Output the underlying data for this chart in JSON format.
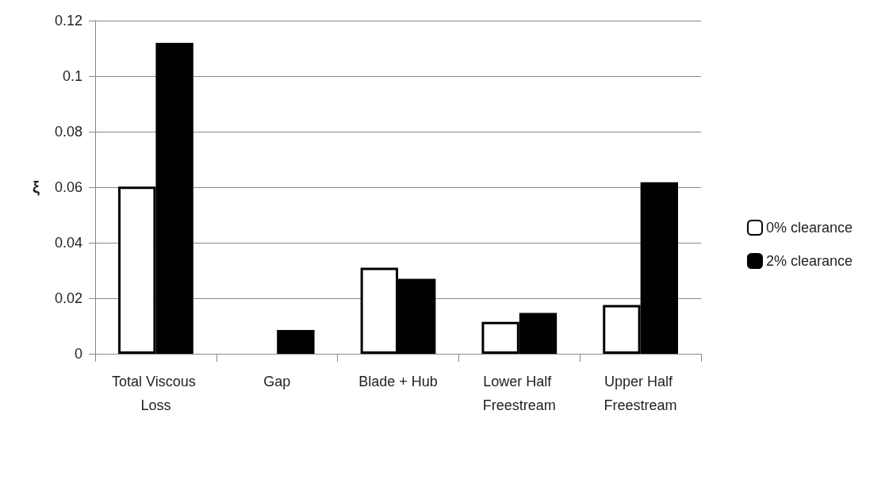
{
  "chart_data": {
    "type": "bar",
    "ylabel": "ξ",
    "categories": [
      "Total Viscous Loss",
      "Gap",
      "Blade + Hub",
      "Lower Half Freestream",
      "Upper Half Freestream"
    ],
    "series": [
      {
        "name": "0% clearance",
        "color": "#ffffff",
        "values": [
          0.0602,
          null,
          0.031,
          0.0115,
          0.0176
        ]
      },
      {
        "name": "2% clearance",
        "color": "#000000",
        "values": [
          0.112,
          0.0086,
          0.027,
          0.0147,
          0.0618
        ]
      }
    ],
    "ylim": [
      0,
      0.12
    ],
    "yticks": [
      0,
      0.02,
      0.04,
      0.06,
      0.08,
      0.1,
      0.12
    ],
    "grid": "y",
    "legend": "right"
  }
}
